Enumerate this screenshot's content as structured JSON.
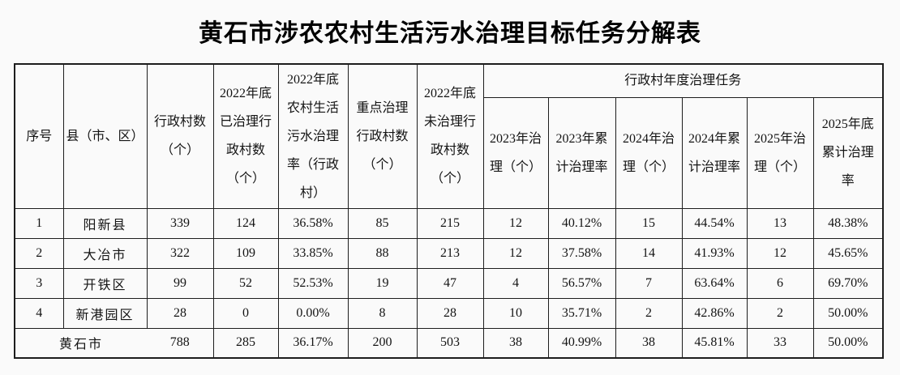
{
  "title": "黄石市涉农农村生活污水治理目标任务分解表",
  "colors": {
    "background": "#fafafa",
    "border": "#1d1d1d",
    "text": "#141414"
  },
  "table": {
    "headers": {
      "seq": [
        "序号"
      ],
      "county": [
        "县（市、区）"
      ],
      "village_count": [
        "行政村数",
        "（个）"
      ],
      "treated_2022": [
        "2022年底",
        "已治理行",
        "政村数",
        "（个）"
      ],
      "rate_2022": [
        "2022年底",
        "农村生活",
        "污水治理",
        "率（行政",
        "村）"
      ],
      "key_villages": [
        "重点治理",
        "行政村数",
        "（个）"
      ],
      "untreated_2022": [
        "2022年底",
        "未治理行",
        "政村数",
        "（个）"
      ],
      "annual_group": [
        "行政村年度治理任务"
      ],
      "treat_2023": [
        "2023年治",
        "理（个）"
      ],
      "rate_2023": [
        "2023年累",
        "计治理率"
      ],
      "treat_2024": [
        "2024年治",
        "理（个）"
      ],
      "rate_2024": [
        "2024年累",
        "计治理率"
      ],
      "treat_2025": [
        "2025年治",
        "理（个）"
      ],
      "rate_2025": [
        "2025年底",
        "累计治理",
        "率"
      ]
    },
    "rows": [
      [
        "1",
        "阳新县",
        "339",
        "124",
        "36.58%",
        "85",
        "215",
        "12",
        "40.12%",
        "15",
        "44.54%",
        "13",
        "48.38%"
      ],
      [
        "2",
        "大冶市",
        "322",
        "109",
        "33.85%",
        "88",
        "213",
        "12",
        "37.58%",
        "14",
        "41.93%",
        "12",
        "45.65%"
      ],
      [
        "3",
        "开铁区",
        "99",
        "52",
        "52.53%",
        "19",
        "47",
        "4",
        "56.57%",
        "7",
        "63.64%",
        "6",
        "69.70%"
      ],
      [
        "4",
        "新港园区",
        "28",
        "0",
        "0.00%",
        "8",
        "28",
        "10",
        "35.71%",
        "2",
        "42.86%",
        "2",
        "50.00%"
      ]
    ],
    "total_row": {
      "label": "黄石市",
      "values": [
        "788",
        "285",
        "36.17%",
        "200",
        "503",
        "38",
        "40.99%",
        "38",
        "45.81%",
        "33",
        "50.00%"
      ]
    }
  }
}
